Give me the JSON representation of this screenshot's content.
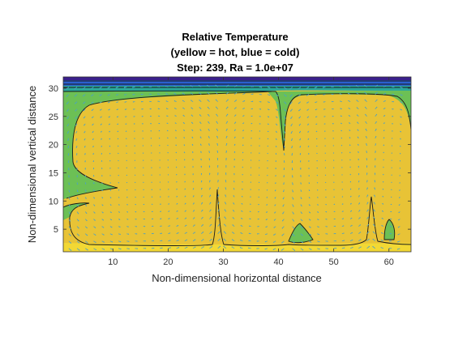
{
  "chart_data": {
    "type": "heatmap",
    "title": [
      "Relative Temperature",
      "(yellow = hot, blue = cold)",
      "Step: 239, Ra = 1.0e+07"
    ],
    "xlabel": "Non-dimensional horizontal distance",
    "ylabel": "Non-dimensional vertical distance",
    "xlim": [
      1,
      64
    ],
    "ylim": [
      1,
      32
    ],
    "xticks": [
      10,
      20,
      30,
      40,
      50,
      60
    ],
    "yticks": [
      5,
      10,
      15,
      20,
      25,
      30
    ],
    "grid": false,
    "colormap": "parula",
    "colors": {
      "hot": "#e8c336",
      "warm": "#f2d834",
      "mid": "#6cc055",
      "cool": "#2aa79a",
      "cold": "#2b5fcf",
      "coldest": "#3b1f8c",
      "vectors": "#4aa0c8",
      "contour": "#1a1a1a"
    },
    "vector_field": true,
    "contours": true
  }
}
